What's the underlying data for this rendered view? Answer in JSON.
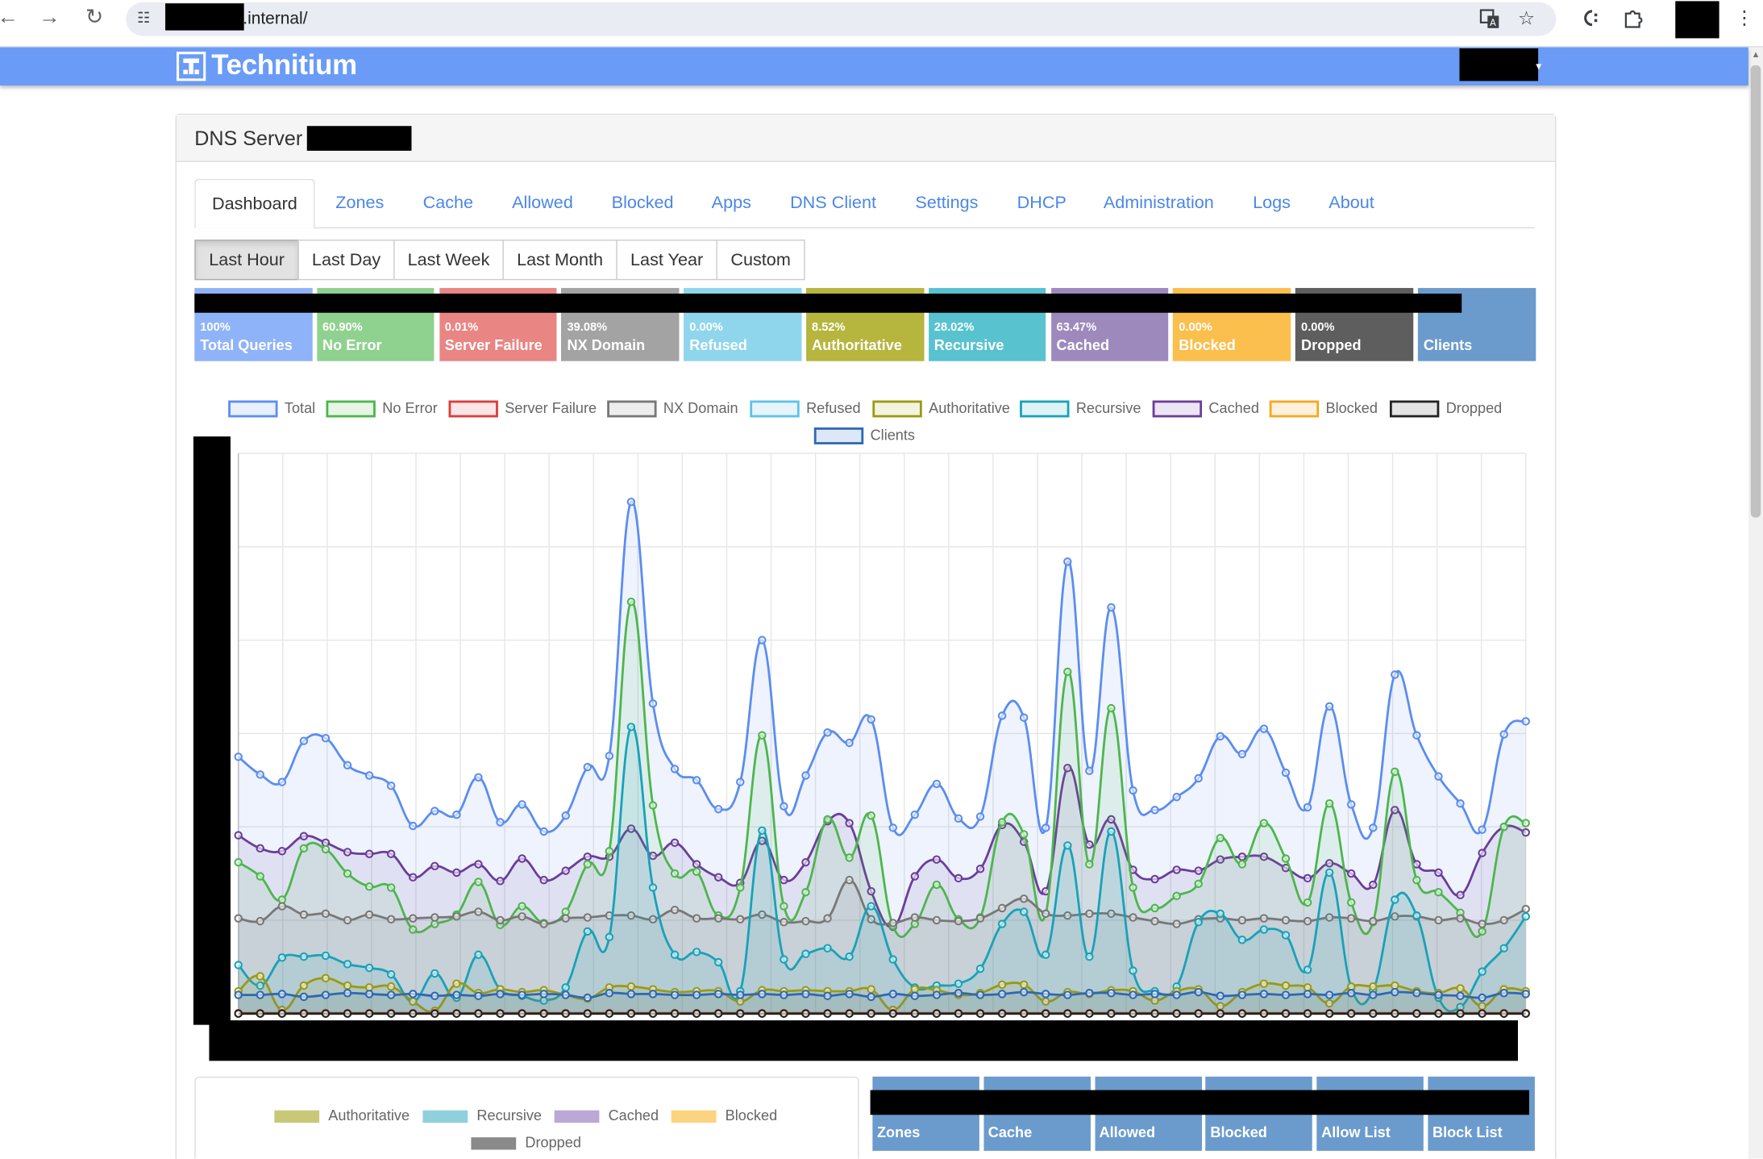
{
  "browser": {
    "url_suffix": ".internal/",
    "icons": [
      "back-arrow-icon",
      "forward-arrow-icon",
      "reload-icon",
      "site-info-icon",
      "translate-icon",
      "bookmark-star-icon",
      "extension-c-icon",
      "extensions-puzzle-icon",
      "menu-kebab-icon"
    ]
  },
  "app": {
    "brand": "Technitium",
    "panel_title": "DNS Server -"
  },
  "tabs": [
    {
      "label": "Dashboard",
      "active": true
    },
    {
      "label": "Zones"
    },
    {
      "label": "Cache"
    },
    {
      "label": "Allowed"
    },
    {
      "label": "Blocked"
    },
    {
      "label": "Apps"
    },
    {
      "label": "DNS Client"
    },
    {
      "label": "Settings"
    },
    {
      "label": "DHCP"
    },
    {
      "label": "Administration"
    },
    {
      "label": "Logs"
    },
    {
      "label": "About"
    }
  ],
  "ranges": [
    {
      "label": "Last Hour",
      "active": true
    },
    {
      "label": "Last Day"
    },
    {
      "label": "Last Week"
    },
    {
      "label": "Last Month"
    },
    {
      "label": "Last Year"
    },
    {
      "label": "Custom"
    }
  ],
  "stats": [
    {
      "pct": "100%",
      "label": "Total Queries",
      "color": "#8fb3f8"
    },
    {
      "pct": "60.90%",
      "label": "No Error",
      "color": "#8fd18f"
    },
    {
      "pct": "0.01%",
      "label": "Server Failure",
      "color": "#e98583"
    },
    {
      "pct": "39.08%",
      "label": "NX Domain",
      "color": "#a3a3a3"
    },
    {
      "pct": "0.00%",
      "label": "Refused",
      "color": "#8fd5ec"
    },
    {
      "pct": "8.52%",
      "label": "Authoritative",
      "color": "#b6b53d"
    },
    {
      "pct": "28.02%",
      "label": "Recursive",
      "color": "#58c2cf"
    },
    {
      "pct": "63.47%",
      "label": "Cached",
      "color": "#9e89bd"
    },
    {
      "pct": "0.00%",
      "label": "Blocked",
      "color": "#fbbf4e"
    },
    {
      "pct": "0.00%",
      "label": "Dropped",
      "color": "#5e5e5e"
    },
    {
      "pct": "",
      "label": "Clients",
      "color": "#6b9bcd"
    }
  ],
  "legend": [
    {
      "label": "Total",
      "color": "#5b8def",
      "fill": "#e8efff"
    },
    {
      "label": "No Error",
      "color": "#4cb64c",
      "fill": "#e6f5e6"
    },
    {
      "label": "Server Failure",
      "color": "#dc3b3b",
      "fill": "#fbe5e5"
    },
    {
      "label": "NX Domain",
      "color": "#777777",
      "fill": "#ededed"
    },
    {
      "label": "Refused",
      "color": "#5ec2e8",
      "fill": "#e6f5fb"
    },
    {
      "label": "Authoritative",
      "color": "#9a9a12",
      "fill": "#f3f3df"
    },
    {
      "label": "Recursive",
      "color": "#17a2b8",
      "fill": "#dff3f6"
    },
    {
      "label": "Cached",
      "color": "#6a3d9a",
      "fill": "#ece5f3"
    },
    {
      "label": "Blocked",
      "color": "#f4a821",
      "fill": "#fdf1dc"
    },
    {
      "label": "Dropped",
      "color": "#222222",
      "fill": "#e3e3e3"
    },
    {
      "label": "Clients",
      "color": "#2e68b4",
      "fill": "#dce8f7"
    }
  ],
  "chart_data": {
    "type": "line",
    "title": "",
    "xlabel": "",
    "ylabel": "",
    "grid": true,
    "legend_position": "top",
    "series": [
      {
        "name": "Total",
        "values": [
          27.5,
          25.6,
          24.8,
          29.2,
          29.5,
          26.6,
          25.5,
          24.4,
          20.1,
          21.7,
          21.3,
          25.3,
          20.5,
          22.4,
          19.5,
          21.2,
          26.4,
          27.6,
          54.8,
          33.2,
          26.2,
          25.0,
          21.9,
          24.8,
          40.0,
          22.2,
          25.5,
          30.1,
          29.0,
          31.5,
          19.9,
          21.3,
          24.6,
          20.9,
          21.1,
          31.9,
          31.7,
          19.9,
          48.4,
          26.0,
          43.5,
          23.9,
          21.8,
          23.2,
          25.2,
          29.7,
          27.8,
          30.5,
          25.8,
          22.1,
          32.9,
          22.4,
          19.9,
          36.3,
          29.8,
          25.4,
          22.5,
          19.7,
          29.9,
          31.3
        ]
      },
      {
        "name": "No Error",
        "values": [
          16.2,
          14.7,
          12.2,
          17.7,
          17.6,
          15.0,
          13.6,
          13.5,
          9.0,
          9.6,
          10.6,
          14.1,
          9.5,
          11.5,
          9.7,
          10.9,
          16.0,
          17.4,
          44.1,
          22.3,
          15.0,
          15.2,
          10.5,
          13.5,
          29.8,
          11.5,
          13.0,
          20.8,
          16.7,
          21.2,
          9.4,
          9.6,
          13.8,
          10.1,
          10.3,
          20.5,
          19.2,
          10.7,
          36.6,
          16.0,
          32.7,
          13.5,
          11.3,
          12.6,
          13.9,
          18.8,
          16.0,
          20.4,
          16.6,
          11.9,
          22.5,
          11.9,
          9.8,
          25.9,
          14.3,
          13.0,
          10.8,
          8.8,
          20.0,
          20.4
        ]
      },
      {
        "name": "Server Failure",
        "values": [
          0.05,
          0.05,
          0.05,
          0.05,
          0.05,
          0.05,
          0.05,
          0.05,
          0.05,
          0.05,
          0.05,
          0.05,
          0.05,
          0.05,
          0.05,
          0.05,
          0.05,
          0.05,
          0.05,
          0.05,
          0.05,
          0.05,
          0.05,
          0.05,
          0.05,
          0.05,
          0.05,
          0.05,
          0.05,
          0.05,
          0.05,
          0.05,
          0.05,
          0.05,
          0.05,
          0.05,
          0.05,
          0.05,
          0.05,
          0.05,
          0.05,
          0.05,
          0.05,
          0.05,
          0.05,
          0.05,
          0.05,
          0.05,
          0.05,
          0.05,
          0.05,
          0.05,
          0.05,
          0.05,
          0.05,
          0.05,
          0.05,
          0.05,
          0.05,
          0.05
        ]
      },
      {
        "name": "NX Domain",
        "values": [
          10.2,
          9.9,
          11.5,
          10.6,
          10.7,
          10.0,
          10.6,
          10.1,
          10.2,
          10.3,
          10.4,
          10.9,
          10.0,
          10.4,
          9.6,
          10.2,
          10.3,
          10.5,
          10.5,
          10.1,
          11.1,
          10.2,
          10.2,
          10.1,
          10.6,
          9.8,
          9.9,
          10.2,
          14.3,
          10.1,
          9.7,
          10.3,
          10.0,
          9.9,
          10.2,
          11.3,
          12.3,
          10.7,
          10.5,
          10.7,
          10.7,
          10.3,
          9.9,
          9.6,
          10.1,
          10.2,
          10.0,
          10.2,
          10.0,
          9.9,
          10.3,
          10.2,
          9.9,
          10.4,
          10.4,
          10.0,
          10.2,
          9.6,
          10.0,
          11.2
        ]
      },
      {
        "name": "Refused",
        "values": [
          0,
          0,
          0,
          0,
          0,
          0,
          0,
          0,
          0,
          0,
          0,
          0,
          0,
          0,
          0,
          0,
          0,
          0,
          0,
          0,
          0,
          0,
          0,
          0,
          0,
          0,
          0,
          0,
          0,
          0,
          0,
          0,
          0,
          0,
          0,
          0,
          0,
          0,
          0,
          0,
          0,
          0,
          0,
          0,
          0,
          0,
          0,
          0,
          0,
          0,
          0,
          0,
          0,
          0,
          0,
          0,
          0,
          0,
          0,
          0
        ]
      },
      {
        "name": "Authoritative",
        "values": [
          2.4,
          4.0,
          0.4,
          3.0,
          3.8,
          3.0,
          2.8,
          2.9,
          1.3,
          0.3,
          3.2,
          2.2,
          2.6,
          2.3,
          2.5,
          2.0,
          1.6,
          2.8,
          2.9,
          2.6,
          2.3,
          2.4,
          2.4,
          1.3,
          2.5,
          2.4,
          2.5,
          2.4,
          2.4,
          2.6,
          0.4,
          2.6,
          2.5,
          2.0,
          2.2,
          3.1,
          3.1,
          1.3,
          2.3,
          2.1,
          2.5,
          2.4,
          1.4,
          2.4,
          2.6,
          0.8,
          2.3,
          3.2,
          3.0,
          2.8,
          1.1,
          2.9,
          2.9,
          3.0,
          2.4,
          2.2,
          2.7,
          0.8,
          2.6,
          2.4
        ]
      },
      {
        "name": "Recursive",
        "values": [
          5.2,
          3.0,
          6.0,
          6.1,
          6.2,
          5.3,
          4.9,
          4.2,
          1.3,
          4.3,
          1.7,
          6.3,
          2.6,
          1.9,
          1.4,
          2.8,
          8.8,
          8.2,
          30.7,
          13.5,
          6.3,
          6.6,
          5.5,
          2.4,
          19.6,
          5.8,
          6.4,
          7.0,
          6.1,
          11.5,
          5.8,
          2.8,
          3.0,
          3.2,
          4.8,
          9.6,
          10.9,
          6.3,
          18.0,
          6.1,
          19.5,
          4.6,
          2.4,
          2.9,
          9.8,
          10.7,
          7.9,
          9.0,
          8.4,
          4.7,
          15.1,
          2.8,
          2.5,
          12.2,
          10.5,
          1.7,
          0.7,
          4.5,
          7.0,
          10.4
        ]
      },
      {
        "name": "Cached",
        "values": [
          19.1,
          17.7,
          17.4,
          19.0,
          18.3,
          17.3,
          17.1,
          17.1,
          14.6,
          15.8,
          15.1,
          16.0,
          14.2,
          16.6,
          14.3,
          15.3,
          16.8,
          16.8,
          19.8,
          16.9,
          18.3,
          16.0,
          14.6,
          14.0,
          18.5,
          14.3,
          16.2,
          20.6,
          20.4,
          13.1,
          9.3,
          14.7,
          16.5,
          14.5,
          15.5,
          20.2,
          18.4,
          13.1,
          26.3,
          18.1,
          20.8,
          15.4,
          14.4,
          15.4,
          15.3,
          16.5,
          16.8,
          16.8,
          15.6,
          14.5,
          16.1,
          15.0,
          13.8,
          21.8,
          16.0,
          15.1,
          12.7,
          17.2,
          20.0,
          19.4
        ]
      },
      {
        "name": "Blocked",
        "values": [
          0,
          0,
          0,
          0,
          0,
          0,
          0,
          0,
          0,
          0,
          0,
          0,
          0,
          0,
          0,
          0,
          0,
          0,
          0,
          0,
          0,
          0,
          0,
          0,
          0,
          0,
          0,
          0,
          0,
          0,
          0,
          0,
          0,
          0,
          0,
          0,
          0,
          0,
          0,
          0,
          0,
          0,
          0,
          0,
          0,
          0,
          0,
          0,
          0,
          0,
          0,
          0,
          0,
          0,
          0,
          0,
          0,
          0,
          0,
          0
        ]
      },
      {
        "name": "Dropped",
        "values": [
          0,
          0,
          0,
          0,
          0,
          0,
          0,
          0,
          0,
          0,
          0,
          0,
          0,
          0,
          0,
          0,
          0,
          0,
          0,
          0,
          0,
          0,
          0,
          0,
          0,
          0,
          0,
          0,
          0,
          0,
          0,
          0,
          0,
          0,
          0,
          0,
          0,
          0,
          0,
          0,
          0,
          0,
          0,
          0,
          0,
          0,
          0,
          0,
          0,
          0,
          0,
          0,
          0,
          0,
          0,
          0,
          0,
          0,
          0,
          0
        ]
      },
      {
        "name": "Clients",
        "values": [
          2.0,
          2.0,
          2.1,
          1.8,
          2.0,
          2.2,
          2.1,
          2.0,
          2.1,
          1.9,
          2.0,
          1.9,
          2.1,
          2.0,
          2.1,
          2.0,
          1.7,
          2.2,
          2.1,
          2.1,
          2.0,
          2.0,
          2.1,
          2.0,
          2.1,
          2.0,
          2.1,
          1.9,
          2.1,
          1.8,
          2.1,
          1.9,
          2.0,
          2.2,
          2.0,
          2.1,
          2.3,
          2.1,
          2.0,
          2.2,
          2.2,
          2.0,
          2.1,
          2.0,
          2.3,
          1.9,
          2.0,
          2.1,
          2.0,
          2.1,
          2.0,
          2.2,
          2.0,
          2.3,
          2.2,
          2.0,
          1.9,
          1.7,
          2.2,
          2.1
        ]
      }
    ]
  },
  "query_type_legend": [
    {
      "label": "Authoritative",
      "color": "#c9c879"
    },
    {
      "label": "Recursive",
      "color": "#8ed1dc"
    },
    {
      "label": "Cached",
      "color": "#bca8d6"
    },
    {
      "label": "Blocked",
      "color": "#fcd37e"
    },
    {
      "label": "Dropped",
      "color": "#8a8a8a"
    }
  ],
  "zone_stats": [
    {
      "label": "Zones"
    },
    {
      "label": "Cache"
    },
    {
      "label": "Allowed"
    },
    {
      "label": "Blocked"
    },
    {
      "label": "Allow List"
    },
    {
      "label": "Block List"
    }
  ]
}
